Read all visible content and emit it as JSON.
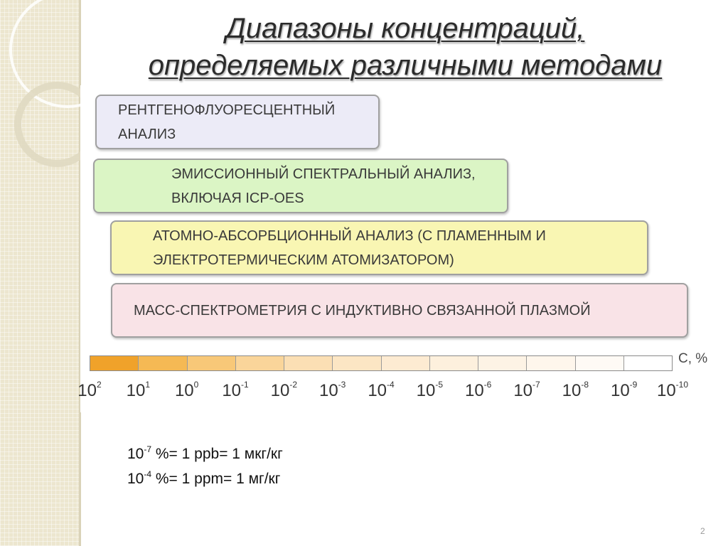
{
  "title": {
    "line1": "Диапазоны концентраций,",
    "line2": "определяемых различными методами"
  },
  "methods": [
    {
      "label": "РЕНТГЕНОФЛУОРЕСЦЕНТНЫЙ АНАЛИЗ",
      "color": "#ecebf7"
    },
    {
      "label": "ЭМИССИОННЫЙ СПЕКТРАЛЬНЫЙ АНАЛИЗ,\nВКЛЮЧАЯ ICP-OES",
      "color": "#dbf5c5"
    },
    {
      "label": "АТОМНО-АБСОРБЦИОННЫЙ АНАЛИЗ (С ПЛАМЕННЫМ И\nЭЛЕКТРОТЕРМИЧЕСКИМ АТОМИЗАТОРОМ)",
      "color": "#f9f6b3"
    },
    {
      "label": "МАСС-СПЕКТРОМЕТРИЯ С ИНДУКТИВНО СВЯЗАННОЙ ПЛАЗМОЙ",
      "color": "#f9e3e7"
    }
  ],
  "scale": {
    "unit": "С, %",
    "ticks": [
      {
        "base": "10",
        "exp": "2"
      },
      {
        "base": "10",
        "exp": "1"
      },
      {
        "base": "10",
        "exp": "0"
      },
      {
        "base": "10",
        "exp": "-1"
      },
      {
        "base": "10",
        "exp": "-2"
      },
      {
        "base": "10",
        "exp": "-3"
      },
      {
        "base": "10",
        "exp": "-4"
      },
      {
        "base": "10",
        "exp": "-5"
      },
      {
        "base": "10",
        "exp": "-6"
      },
      {
        "base": "10",
        "exp": "-7"
      },
      {
        "base": "10",
        "exp": "-8"
      },
      {
        "base": "10",
        "exp": "-9"
      },
      {
        "base": "10",
        "exp": "-10"
      }
    ],
    "gradient_colors": [
      "#f0a22a",
      "#f5b954",
      "#f8c878",
      "#fad59a",
      "#fbdfb4",
      "#fce6c4",
      "#fdebd2",
      "#fdf0dd",
      "#fdf3e5",
      "#fef6ec",
      "#fefaf5",
      "#ffffff"
    ]
  },
  "notes": [
    {
      "base": "10",
      "exp": "-7",
      "rest": " %= 1 ppb= 1 мкг/кг"
    },
    {
      "base": "10",
      "exp": "-4",
      "rest": " %= 1 ppm= 1 мг/кг"
    }
  ],
  "page_number": "2"
}
